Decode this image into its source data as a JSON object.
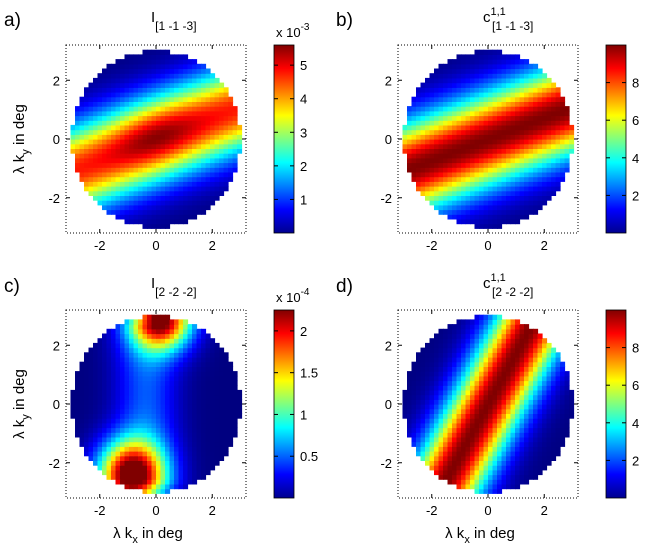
{
  "figure": {
    "panels": [
      {
        "letter": "a)",
        "title_main": "I",
        "title_sup": "",
        "title_sub": "[1 -1 -3]",
        "ylabel": "λ k",
        "ylabel_sub": "y",
        "ylabel_tail": " in deg",
        "xlabel": "",
        "xlabel_sub": "",
        "xlabel_tail": "",
        "colorbar_exponent_prefix": "x 10",
        "colorbar_exponent": "-3"
      },
      {
        "letter": "b)",
        "title_main": "c",
        "title_sup": "1,1",
        "title_sub": "[1 -1 -3]",
        "ylabel": "",
        "ylabel_sub": "",
        "ylabel_tail": "",
        "xlabel": "",
        "xlabel_sub": "",
        "xlabel_tail": "",
        "colorbar_exponent_prefix": "",
        "colorbar_exponent": ""
      },
      {
        "letter": "c)",
        "title_main": "I",
        "title_sup": "",
        "title_sub": "[2 -2 -2]",
        "ylabel": "λ k",
        "ylabel_sub": "y",
        "ylabel_tail": " in deg",
        "xlabel": "λ k",
        "xlabel_sub": "x",
        "xlabel_tail": " in deg",
        "colorbar_exponent_prefix": "x 10",
        "colorbar_exponent": "-4"
      },
      {
        "letter": "d)",
        "title_main": "c",
        "title_sup": "1,1",
        "title_sub": "[2 -2 -2]",
        "ylabel": "",
        "ylabel_sub": "",
        "ylabel_tail": "",
        "xlabel": "λ k",
        "xlabel_sub": "x",
        "xlabel_tail": " in deg",
        "colorbar_exponent_prefix": "",
        "colorbar_exponent": ""
      }
    ]
  },
  "chart_data": [
    {
      "type": "heatmap",
      "panel": "a)",
      "title": "I[1 -1 -3]",
      "ylabel": "λ ky in deg",
      "xlim": [
        -3.2,
        3.2
      ],
      "ylim": [
        -3.2,
        3.2
      ],
      "xticks": [
        -2,
        0,
        2
      ],
      "yticks": [
        -2,
        0,
        2
      ],
      "region": "circular aperture, radius 3",
      "pattern": {
        "kind": "band",
        "angle_deg": 20,
        "width": 1.0,
        "offset": 0,
        "max_at": [
          -0.1,
          0.4
        ],
        "peak_boost": 0.15
      },
      "colormap": "jet",
      "colorbar": {
        "min": 0,
        "max": 5.6,
        "ticks": [
          "1",
          "2",
          "3",
          "4",
          "5"
        ],
        "tick_values": [
          1,
          2,
          3,
          4,
          5
        ],
        "multiplier": "x 10^-3"
      },
      "grid": true
    },
    {
      "type": "heatmap",
      "panel": "b)",
      "title": "c1,1[1 -1 -3]",
      "xlim": [
        -3.2,
        3.2
      ],
      "ylim": [
        -3.2,
        3.2
      ],
      "xticks": [
        -2,
        0,
        2
      ],
      "yticks": [
        -2,
        0,
        2
      ],
      "region": "circular aperture, radius 3",
      "pattern": {
        "kind": "band",
        "angle_deg": 20,
        "width": 1.05,
        "offset": 0,
        "peak_boost": 0
      },
      "colormap": "jet",
      "colorbar": {
        "min": 0,
        "max": 10,
        "ticks": [
          "2",
          "4",
          "6",
          "8"
        ],
        "tick_values": [
          2,
          4,
          6,
          8
        ],
        "multiplier": ""
      },
      "grid": true
    },
    {
      "type": "heatmap",
      "panel": "c)",
      "title": "I[2 -2 -2]",
      "xlabel": "λ kx in deg",
      "ylabel": "λ ky in deg",
      "xlim": [
        -3.2,
        3.2
      ],
      "ylim": [
        -3.2,
        3.2
      ],
      "xticks": [
        -2,
        0,
        2
      ],
      "yticks": [
        -2,
        0,
        2
      ],
      "region": "circular aperture, radius 3",
      "pattern": {
        "kind": "spots",
        "spots": [
          {
            "x": 0.2,
            "y": 3.0,
            "r": 0.75,
            "amp": 1.0
          },
          {
            "x": -0.9,
            "y": -2.4,
            "r": 0.8,
            "amp": 1.0
          }
        ],
        "haze": 0.35
      },
      "colormap": "jet",
      "colorbar": {
        "min": 0,
        "max": 2.25,
        "ticks": [
          "0.5",
          "1",
          "1.5",
          "2"
        ],
        "tick_values": [
          0.5,
          1,
          1.5,
          2
        ],
        "multiplier": "x 10^-4"
      },
      "grid": true
    },
    {
      "type": "heatmap",
      "panel": "d)",
      "title": "c1,1[2 -2 -2]",
      "xlabel": "λ kx in deg",
      "xlim": [
        -3.2,
        3.2
      ],
      "ylim": [
        -3.2,
        3.2
      ],
      "xticks": [
        -2,
        0,
        2
      ],
      "yticks": [
        -2,
        0,
        2
      ],
      "region": "circular aperture, radius 3",
      "pattern": {
        "kind": "band",
        "angle_deg": 60,
        "width": 0.85,
        "offset": 0,
        "peak_boost": 0
      },
      "colormap": "jet",
      "colorbar": {
        "min": 0,
        "max": 10,
        "ticks": [
          "2",
          "4",
          "6",
          "8"
        ],
        "tick_values": [
          2,
          4,
          6,
          8
        ],
        "multiplier": ""
      },
      "grid": true
    }
  ]
}
